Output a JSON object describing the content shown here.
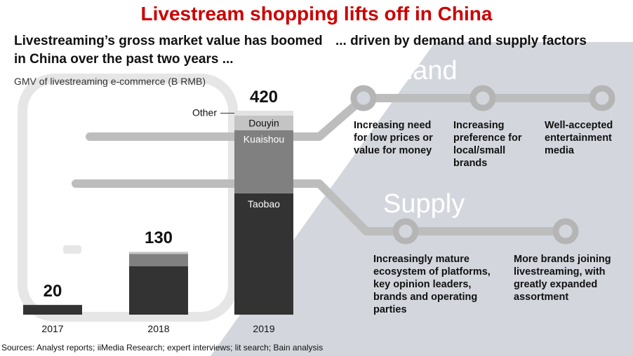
{
  "title": "Livestream shopping lifts off in China",
  "left_subtitle": "Livestreaming’s gross market value has boomed in China over the past two years ...",
  "right_subtitle": "... driven by demand and supply factors",
  "gmv_label": "GMV of livestreaming e-commerce (B RMB)",
  "demand": {
    "heading": "Demand",
    "items": [
      "Increasing need for low prices or value for money",
      "Increasing preference for local/small brands",
      "Well-accepted entertainment media"
    ]
  },
  "supply": {
    "heading": "Supply",
    "items": [
      "Increasingly mature ecosystem of platforms, key opinion leaders, brands and operating parties",
      "More brands joining livestreaming, with greatly expanded assortment"
    ]
  },
  "sources": "Sources: Analyst reports; iiMedia Research; expert interviews; lit search; Bain analysis",
  "colors": {
    "title": "#cc0000",
    "taobao": "#333333",
    "kuaishou": "#808080",
    "douyin": "#c4c4c4",
    "other": "#e2e2e2",
    "background_shape": "#d3d6dd",
    "connector_line": "#bdbdbd"
  },
  "chart_data": {
    "type": "bar",
    "stacked": true,
    "categories": [
      "2017",
      "2018",
      "2019"
    ],
    "totals": [
      20,
      130,
      420
    ],
    "series": [
      {
        "name": "Taobao",
        "values": [
          20,
          100,
          250
        ]
      },
      {
        "name": "Kuaishou",
        "values": [
          0,
          25,
          130
        ]
      },
      {
        "name": "Douyin",
        "values": [
          0,
          4,
          30
        ]
      },
      {
        "name": "Other",
        "values": [
          0,
          1,
          10
        ]
      }
    ],
    "ylabel": "GMV of livestreaming e-commerce (B RMB)",
    "ylim": [
      0,
      420
    ],
    "grid": false,
    "legend": "inline labels on 2019 bar"
  }
}
